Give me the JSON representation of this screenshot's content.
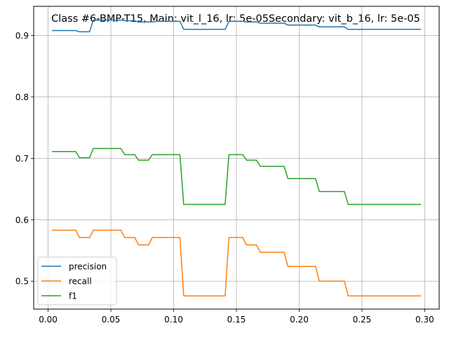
{
  "chart_data": {
    "type": "line",
    "title": "Class #6-BMP-T15, Main: vit_l_16, lr: 5e-05Secondary: vit_b_16, lr: 5e-05",
    "xlabel": "",
    "ylabel": "",
    "xlim": [
      -0.0115,
      0.3115
    ],
    "ylim": [
      0.4545,
      0.9475
    ],
    "x_ticks": [
      0.0,
      0.05,
      0.1,
      0.15,
      0.2,
      0.25,
      0.3
    ],
    "x_tick_labels": [
      "0.00",
      "0.05",
      "0.10",
      "0.15",
      "0.20",
      "0.25",
      "0.30"
    ],
    "y_ticks": [
      0.5,
      0.6,
      0.7,
      0.8,
      0.9
    ],
    "y_tick_labels": [
      "0.5",
      "0.6",
      "0.7",
      "0.8",
      "0.9"
    ],
    "grid": true,
    "legend_position": "lower-left",
    "series": [
      {
        "name": "precision",
        "color": "#1f77b4",
        "points": [
          [
            0.003,
            0.908
          ],
          [
            0.022,
            0.908
          ],
          [
            0.025,
            0.906
          ],
          [
            0.033,
            0.906
          ],
          [
            0.036,
            0.925
          ],
          [
            0.058,
            0.925
          ],
          [
            0.061,
            0.924
          ],
          [
            0.069,
            0.924
          ],
          [
            0.072,
            0.922
          ],
          [
            0.083,
            0.922
          ],
          [
            0.086,
            0.923
          ],
          [
            0.105,
            0.923
          ],
          [
            0.108,
            0.91
          ],
          [
            0.141,
            0.91
          ],
          [
            0.144,
            0.923
          ],
          [
            0.155,
            0.923
          ],
          [
            0.158,
            0.922
          ],
          [
            0.166,
            0.922
          ],
          [
            0.169,
            0.92
          ],
          [
            0.188,
            0.92
          ],
          [
            0.191,
            0.917
          ],
          [
            0.213,
            0.917
          ],
          [
            0.216,
            0.914
          ],
          [
            0.236,
            0.914
          ],
          [
            0.239,
            0.91
          ],
          [
            0.297,
            0.91
          ]
        ]
      },
      {
        "name": "recall",
        "color": "#ff7f0e",
        "points": [
          [
            0.003,
            0.583
          ],
          [
            0.022,
            0.583
          ],
          [
            0.025,
            0.571
          ],
          [
            0.033,
            0.571
          ],
          [
            0.036,
            0.583
          ],
          [
            0.058,
            0.583
          ],
          [
            0.061,
            0.571
          ],
          [
            0.069,
            0.571
          ],
          [
            0.072,
            0.559
          ],
          [
            0.08,
            0.559
          ],
          [
            0.083,
            0.571
          ],
          [
            0.105,
            0.571
          ],
          [
            0.108,
            0.476
          ],
          [
            0.141,
            0.476
          ],
          [
            0.144,
            0.571
          ],
          [
            0.155,
            0.571
          ],
          [
            0.158,
            0.559
          ],
          [
            0.166,
            0.559
          ],
          [
            0.169,
            0.547
          ],
          [
            0.188,
            0.547
          ],
          [
            0.191,
            0.524
          ],
          [
            0.213,
            0.524
          ],
          [
            0.216,
            0.5
          ],
          [
            0.236,
            0.5
          ],
          [
            0.239,
            0.476
          ],
          [
            0.297,
            0.476
          ]
        ]
      },
      {
        "name": "f1",
        "color": "#2ca02c",
        "points": [
          [
            0.003,
            0.711
          ],
          [
            0.022,
            0.711
          ],
          [
            0.025,
            0.701
          ],
          [
            0.033,
            0.701
          ],
          [
            0.036,
            0.716
          ],
          [
            0.058,
            0.716
          ],
          [
            0.061,
            0.706
          ],
          [
            0.069,
            0.706
          ],
          [
            0.072,
            0.697
          ],
          [
            0.08,
            0.697
          ],
          [
            0.083,
            0.706
          ],
          [
            0.105,
            0.706
          ],
          [
            0.108,
            0.625
          ],
          [
            0.141,
            0.625
          ],
          [
            0.144,
            0.706
          ],
          [
            0.155,
            0.706
          ],
          [
            0.158,
            0.697
          ],
          [
            0.166,
            0.697
          ],
          [
            0.169,
            0.687
          ],
          [
            0.188,
            0.687
          ],
          [
            0.191,
            0.667
          ],
          [
            0.213,
            0.667
          ],
          [
            0.216,
            0.646
          ],
          [
            0.236,
            0.646
          ],
          [
            0.239,
            0.625
          ],
          [
            0.297,
            0.625
          ]
        ]
      }
    ]
  }
}
